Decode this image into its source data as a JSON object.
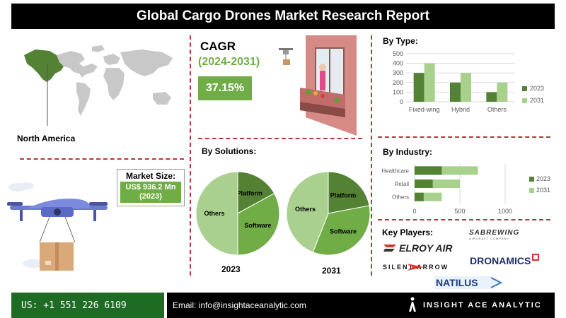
{
  "header": {
    "title": "Global Cargo Drones Market Research Report"
  },
  "region": {
    "label": "North America"
  },
  "market_size": {
    "label": "Market Size:",
    "value": "US$ 936.2 Mn",
    "year": "(2023)"
  },
  "cagr": {
    "title": "CAGR",
    "period": "(2024-2031)",
    "value": "37.15%"
  },
  "sections": {
    "by_type": "By Type:",
    "by_solutions": "By Solutions:",
    "by_industry": "By  Industry:",
    "key_players": "Key Players:"
  },
  "colors": {
    "dark_green": "#548235",
    "light_green": "#a9d18e",
    "accent_green": "#70ad47",
    "mid_green": "#70ad47",
    "pale_green": "#a9d08e"
  },
  "chart_data": [
    {
      "id": "by_type",
      "type": "bar",
      "categories": [
        "Fixed-wing",
        "Hybrid",
        "Others"
      ],
      "series": [
        {
          "name": "2023",
          "values": [
            300,
            200,
            100
          ]
        },
        {
          "name": "2031",
          "values": [
            400,
            300,
            200
          ]
        }
      ],
      "ylim": [
        0,
        500
      ],
      "yticks": [
        "0",
        "100",
        "200",
        "300",
        "400",
        "500"
      ],
      "grid": true,
      "legend": "right"
    },
    {
      "id": "by_solutions_2023",
      "type": "pie",
      "title": "2023",
      "labels": [
        "Platform",
        "Software",
        "Others"
      ],
      "values": [
        17,
        33,
        50
      ]
    },
    {
      "id": "by_solutions_2031",
      "type": "pie",
      "title": "2031",
      "labels": [
        "Platform",
        "Software",
        "Others"
      ],
      "values": [
        22,
        34,
        44
      ]
    },
    {
      "id": "by_industry",
      "type": "bar",
      "orientation": "horizontal",
      "categories": [
        "Healthcare",
        "Retail",
        "Others"
      ],
      "series": [
        {
          "name": "2023",
          "values": [
            300,
            200,
            100
          ]
        },
        {
          "name": "2031",
          "values": [
            700,
            500,
            300
          ]
        }
      ],
      "xlim": [
        0,
        1000
      ],
      "xticks": [
        "0",
        "500",
        "1000"
      ],
      "grid": true,
      "legend": "right"
    }
  ],
  "key_players": [
    {
      "name": "SABREWING",
      "sub": "AIRCRAFT COMPANY"
    },
    {
      "name": "ELROY AIR"
    },
    {
      "name": "SILENT ARROW"
    },
    {
      "name": "DRONAMICS"
    },
    {
      "name": "NATILUS"
    }
  ],
  "footer": {
    "phone": "US: +1 551 226 6109",
    "email": "Email: info@insightaceanalytic.com",
    "brand": "INSIGHT ACE ANALYTIC"
  }
}
